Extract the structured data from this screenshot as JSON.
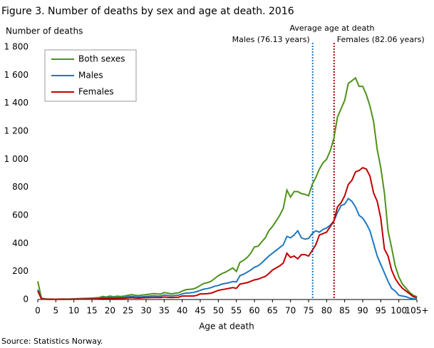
{
  "chart_data": {
    "type": "line",
    "title": "Figure 3. Number of deaths by sex and age at death. 2016",
    "y_label": "Number of deaths",
    "x_label": "Age at death",
    "source": "Source: Statistics Norway.",
    "x": [
      0,
      1,
      2,
      3,
      4,
      5,
      6,
      7,
      8,
      9,
      10,
      11,
      12,
      13,
      14,
      15,
      16,
      17,
      18,
      19,
      20,
      21,
      22,
      23,
      24,
      25,
      26,
      27,
      28,
      29,
      30,
      31,
      32,
      33,
      34,
      35,
      36,
      37,
      38,
      39,
      40,
      41,
      42,
      43,
      44,
      45,
      46,
      47,
      48,
      49,
      50,
      51,
      52,
      53,
      54,
      55,
      56,
      57,
      58,
      59,
      60,
      61,
      62,
      63,
      64,
      65,
      66,
      67,
      68,
      69,
      70,
      71,
      72,
      73,
      74,
      75,
      76,
      77,
      78,
      79,
      80,
      81,
      82,
      83,
      84,
      85,
      86,
      87,
      88,
      89,
      90,
      91,
      92,
      93,
      94,
      95,
      96,
      97,
      98,
      99,
      100,
      101,
      102,
      103,
      104,
      105
    ],
    "series": [
      {
        "name": "Both sexes",
        "color": "#4e9219",
        "values": [
          130,
          10,
          5,
          3,
          3,
          2,
          3,
          4,
          3,
          4,
          5,
          6,
          7,
          8,
          9,
          10,
          12,
          14,
          22,
          18,
          25,
          20,
          24,
          22,
          25,
          30,
          35,
          30,
          28,
          32,
          35,
          38,
          42,
          40,
          38,
          50,
          45,
          40,
          45,
          48,
          60,
          70,
          72,
          75,
          85,
          100,
          115,
          120,
          130,
          150,
          170,
          185,
          195,
          210,
          225,
          200,
          265,
          280,
          300,
          330,
          375,
          380,
          410,
          440,
          490,
          520,
          560,
          600,
          650,
          780,
          730,
          770,
          770,
          755,
          750,
          740,
          820,
          870,
          930,
          975,
          1000,
          1060,
          1150,
          1300,
          1360,
          1420,
          1540,
          1560,
          1580,
          1520,
          1520,
          1460,
          1380,
          1270,
          1070,
          940,
          760,
          490,
          370,
          240,
          160,
          110,
          80,
          50,
          30,
          20
        ]
      },
      {
        "name": "Males",
        "color": "#1f78c1",
        "values": [
          70,
          6,
          3,
          2,
          2,
          1,
          2,
          2,
          2,
          3,
          3,
          4,
          4,
          5,
          6,
          7,
          8,
          9,
          14,
          11,
          16,
          13,
          15,
          14,
          16,
          19,
          22,
          19,
          18,
          20,
          22,
          24,
          27,
          25,
          24,
          32,
          29,
          26,
          29,
          31,
          40,
          45,
          47,
          50,
          56,
          65,
          75,
          78,
          85,
          95,
          100,
          110,
          115,
          120,
          128,
          125,
          170,
          180,
          195,
          210,
          230,
          240,
          260,
          285,
          310,
          330,
          350,
          370,
          390,
          450,
          440,
          460,
          490,
          440,
          430,
          435,
          470,
          490,
          480,
          500,
          510,
          530,
          560,
          620,
          670,
          680,
          720,
          700,
          660,
          600,
          580,
          540,
          490,
          400,
          310,
          250,
          190,
          130,
          80,
          60,
          30,
          25,
          20,
          10,
          5,
          5
        ]
      },
      {
        "name": "Females",
        "color": "#c00000",
        "values": [
          60,
          4,
          2,
          1,
          1,
          1,
          1,
          2,
          1,
          1,
          2,
          2,
          3,
          3,
          3,
          3,
          4,
          5,
          8,
          7,
          9,
          7,
          9,
          8,
          9,
          11,
          13,
          11,
          10,
          12,
          13,
          14,
          15,
          15,
          14,
          18,
          16,
          14,
          16,
          17,
          25,
          25,
          25,
          25,
          29,
          40,
          40,
          42,
          45,
          55,
          65,
          70,
          75,
          80,
          85,
          80,
          110,
          115,
          120,
          130,
          140,
          145,
          155,
          165,
          185,
          210,
          225,
          240,
          260,
          330,
          300,
          310,
          290,
          320,
          320,
          310,
          350,
          390,
          460,
          470,
          480,
          520,
          560,
          660,
          690,
          740,
          820,
          850,
          910,
          920,
          940,
          930,
          880,
          760,
          700,
          580,
          360,
          310,
          210,
          150,
          110,
          80,
          60,
          40,
          20,
          15
        ]
      }
    ],
    "xlim": [
      0,
      105
    ],
    "xticks": [
      0,
      5,
      10,
      15,
      20,
      25,
      30,
      35,
      40,
      45,
      50,
      55,
      60,
      65,
      70,
      75,
      80,
      85,
      90,
      95,
      100,
      {
        "value": 105,
        "label": "105+"
      }
    ],
    "ylim": [
      0,
      1800
    ],
    "yticks": [
      0,
      200,
      400,
      600,
      800,
      {
        "value": 1000,
        "label": "1 000"
      },
      {
        "value": 1200,
        "label": "1 200"
      },
      {
        "value": 1400,
        "label": "1 400"
      },
      {
        "value": 1600,
        "label": "1 600"
      },
      {
        "value": 1800,
        "label": "1 800"
      }
    ],
    "annotation": "Average age at death",
    "reference_lines": [
      {
        "label": "Males (76.13 years)",
        "x": 76.13,
        "color": "#1f78c1"
      },
      {
        "label": "Females (82.06 years)",
        "x": 82.06,
        "color": "#a00000"
      }
    ],
    "legend": "upper left"
  }
}
